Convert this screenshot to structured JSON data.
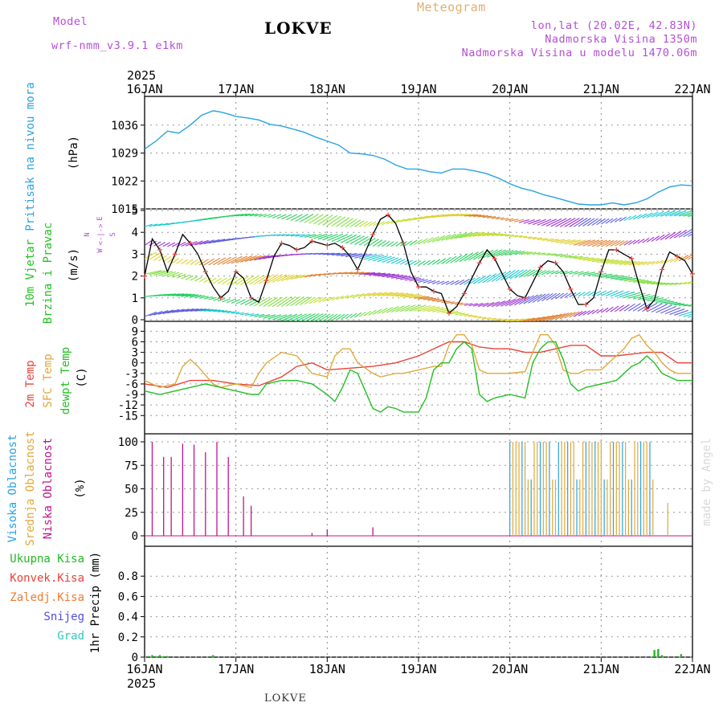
{
  "header": {
    "model_label": "Model",
    "model_name": "wrf-nmm_v3.9.1  e1km",
    "station": "LOKVE",
    "chart_name": "Meteogram",
    "lonlat": "lon,lat (20.02E, 42.83N)",
    "altitude": "Nadmorska Visina 1350m",
    "model_altitude": "Nadmorska Visina u modelu 1470.06m",
    "footer_station": "LOKVE",
    "watermark": "made by Angel"
  },
  "colors": {
    "pressure": "#29a3e0",
    "t2m": "#e8423a",
    "sfc": "#e0a83a",
    "dew": "#22c022",
    "high_cloud": "#29a3e0",
    "mid_cloud": "#e0a83a",
    "low_cloud": "#c0148c",
    "total_precip": "#22b822",
    "purple_text": "#b44fd6",
    "orange_text": "#e0b070"
  },
  "chart_data": {
    "type": "line",
    "time_axis": {
      "year": "2025",
      "ticks": [
        "16JAN",
        "17JAN",
        "18JAN",
        "19JAN",
        "20JAN",
        "21JAN",
        "22JAN"
      ],
      "range_hours": [
        0,
        144
      ]
    },
    "panels": [
      {
        "id": "pressure",
        "labels": [
          "Pritisak na nivou mora"
        ],
        "unit": "(hPa)",
        "ylim": [
          1015,
          1042
        ],
        "yticks": [
          "1015",
          "1022",
          "1029",
          "1036"
        ],
        "series": [
          {
            "x": [
              0,
              3,
              6,
              9,
              12,
              15,
              18,
              20,
              22,
              24,
              27,
              30,
              33,
              36,
              39,
              42,
              45,
              48,
              51,
              54,
              57,
              60,
              63,
              66,
              69,
              72,
              75,
              78,
              81,
              84,
              87,
              90,
              93,
              96,
              99,
              102,
              105,
              108,
              111,
              114,
              117,
              120,
              123,
              126,
              129,
              132,
              135,
              138,
              141,
              144
            ],
            "y": [
              1030,
              1032,
              1034.5,
              1034,
              1036,
              1038.5,
              1039.6,
              1039.3,
              1038.8,
              1038.2,
              1037.8,
              1037.3,
              1036.2,
              1035.8,
              1035,
              1034.2,
              1033,
              1032,
              1031,
              1029,
              1028.8,
              1028.4,
              1027.5,
              1026,
              1025,
              1025,
              1024.3,
              1024,
              1025,
              1025,
              1024.5,
              1023.8,
              1022.7,
              1021.3,
              1020.2,
              1019.5,
              1018.5,
              1017.8,
              1017,
              1016.2,
              1016,
              1016,
              1016.5,
              1016,
              1016.5,
              1017.5,
              1019.2,
              1020.5,
              1021,
              1020.8
            ]
          }
        ]
      },
      {
        "id": "wind",
        "labels": [
          "10m Vjetar",
          "Brzina i Pravac"
        ],
        "unit": "(m/s)",
        "compass": [
          "N",
          "W",
          "E",
          "S"
        ],
        "ylim": [
          0,
          5
        ],
        "yticks": [
          "0",
          "1",
          "2",
          "3",
          "4",
          "5"
        ],
        "series": [
          {
            "name": "speed",
            "x": [
              0,
              2,
              4,
              6,
              8,
              10,
              12,
              14,
              16,
              18,
              20,
              22,
              24,
              26,
              28,
              30,
              32,
              34,
              36,
              38,
              40,
              42,
              44,
              46,
              48,
              50,
              52,
              54,
              56,
              58,
              60,
              62,
              64,
              66,
              68,
              70,
              72,
              74,
              76,
              78,
              80,
              82,
              84,
              86,
              88,
              90,
              92,
              94,
              96,
              98,
              100,
              102,
              104,
              106,
              108,
              110,
              112,
              114,
              116,
              118,
              120,
              122,
              124,
              126,
              128,
              130,
              132,
              134,
              136,
              138,
              140,
              142,
              144
            ],
            "y": [
              2,
              3.7,
              3.2,
              2.2,
              3,
              3.9,
              3.5,
              3,
              2.2,
              1.5,
              1,
              1.3,
              2.2,
              1.9,
              1,
              0.8,
              1.8,
              2.9,
              3.5,
              3.4,
              3.2,
              3.3,
              3.6,
              3.5,
              3.4,
              3.5,
              3.3,
              2.9,
              2.3,
              3.1,
              3.9,
              4.6,
              4.8,
              4.4,
              3.5,
              2.2,
              1.5,
              1.5,
              1.3,
              1.2,
              0.3,
              0.6,
              1.2,
              1.9,
              2.6,
              3.2,
              2.8,
              2.1,
              1.4,
              1.1,
              1,
              1.7,
              2.4,
              2.7,
              2.6,
              2.2,
              1.4,
              0.7,
              0.7,
              1,
              2.2,
              3.2,
              3.2,
              3,
              2.8,
              1.6,
              0.5,
              0.9,
              2.3,
              3.1,
              2.9,
              2.7,
              2.1
            ]
          }
        ]
      },
      {
        "id": "temperature",
        "labels": [
          "2m Temp",
          "SFC Temp",
          "dewpt Temp"
        ],
        "unit": "(C)",
        "ylim": [
          -17,
          10
        ],
        "yticks": [
          "-15",
          "-12",
          "-9",
          "-6",
          "-3",
          "0",
          "3",
          "6",
          "9"
        ],
        "series": [
          {
            "name": "2m Temp",
            "x": [
              0,
              6,
              12,
              18,
              24,
              30,
              36,
              40,
              44,
              48,
              54,
              60,
              66,
              72,
              76,
              80,
              84,
              88,
              92,
              96,
              100,
              104,
              108,
              112,
              116,
              120,
              124,
              128,
              132,
              136,
              140,
              144
            ],
            "y": [
              -6,
              -7,
              -5,
              -5,
              -6,
              -6.5,
              -4,
              -1,
              0,
              -2,
              -1.5,
              -1,
              0,
              2,
              4,
              6,
              6,
              4.5,
              4,
              4,
              3,
              3,
              4,
              5,
              5,
              2,
              2,
              2.5,
              3,
              3,
              0,
              0
            ]
          },
          {
            "name": "SFC Temp",
            "x": [
              0,
              4,
              8,
              10,
              12,
              14,
              18,
              20,
              24,
              28,
              30,
              32,
              36,
              40,
              44,
              48,
              50,
              52,
              54,
              56,
              60,
              62,
              64,
              66,
              68,
              72,
              76,
              78,
              80,
              82,
              84,
              86,
              88,
              90,
              92,
              96,
              100,
              102,
              104,
              106,
              108,
              110,
              112,
              114,
              116,
              120,
              124,
              126,
              128,
              130,
              132,
              134,
              136,
              138,
              140,
              144
            ],
            "y": [
              -5,
              -7,
              -6,
              -1,
              1,
              -1,
              -6,
              -7,
              -6,
              -7,
              -3,
              0,
              3,
              2,
              -3,
              -4,
              2,
              4,
              4,
              0,
              -3,
              -4,
              -3.5,
              -3,
              -3,
              -2,
              -1,
              -1,
              5,
              8,
              8,
              5,
              -2,
              -3,
              -3,
              -3,
              -2.5,
              3,
              8,
              8,
              5,
              -2,
              -3,
              -3,
              -2,
              -2,
              2,
              4,
              7,
              8,
              5,
              3,
              0,
              -2,
              -3,
              -3
            ]
          },
          {
            "name": "dewpt Temp",
            "x": [
              0,
              4,
              8,
              12,
              16,
              20,
              24,
              28,
              30,
              32,
              36,
              40,
              44,
              48,
              50,
              52,
              54,
              56,
              58,
              60,
              62,
              64,
              66,
              68,
              72,
              74,
              76,
              78,
              80,
              82,
              84,
              86,
              88,
              90,
              92,
              96,
              100,
              102,
              104,
              106,
              108,
              110,
              112,
              114,
              116,
              120,
              124,
              126,
              128,
              130,
              132,
              134,
              136,
              138,
              140,
              144
            ],
            "y": [
              -8,
              -9,
              -8,
              -7,
              -6,
              -7,
              -8,
              -9,
              -9,
              -6,
              -5,
              -5,
              -6,
              -9,
              -11,
              -7,
              -2,
              -3,
              -8,
              -13,
              -14,
              -12.5,
              -13,
              -14,
              -14,
              -10,
              -2,
              0,
              0,
              4,
              6,
              4,
              -9,
              -11,
              -10,
              -9,
              -10,
              0,
              4,
              6,
              6,
              1,
              -6,
              -8,
              -7,
              -6,
              -5,
              -3,
              -1,
              0,
              2,
              0,
              -3,
              -4,
              -5,
              -5
            ]
          }
        ]
      },
      {
        "id": "cloud",
        "labels": [
          "Visoka Oblacnost",
          "Srednja Oblacnost",
          "Niska Oblacnost"
        ],
        "unit": "(%)",
        "ylim": [
          0,
          100
        ],
        "yticks": [
          "0",
          "25",
          "50",
          "75",
          "100"
        ],
        "series": [
          {
            "name": "Niska Oblacnost",
            "x": [
              1,
              2,
              4,
              5,
              7,
              8,
              10,
              11,
              13,
              14,
              16,
              17,
              19,
              20,
              22,
              23,
              25,
              26,
              28,
              29,
              31,
              32,
              33,
              34,
              36,
              40,
              44,
              48,
              52,
              56,
              60,
              64,
              68,
              72,
              84,
              96,
              108,
              120,
              132,
              137,
              139,
              143
            ],
            "y": [
              0,
              100,
              0,
              84,
              84,
              0,
              98,
              0,
              97,
              0,
              89,
              0,
              100,
              0,
              84,
              0,
              0,
              42,
              32,
              0,
              0,
              0,
              0,
              0,
              0,
              0,
              3,
              7,
              0,
              0,
              9,
              0,
              0,
              0,
              0,
              0,
              0,
              0,
              0,
              0,
              0,
              0
            ]
          }
        ]
      },
      {
        "id": "precip",
        "labels": [
          "Ukupna Kisa",
          "Konvek.Kisa",
          "Zaledj.Kisa",
          "Snijeg",
          "Grad"
        ],
        "unit": "1hr Precip (mm)",
        "ylim": [
          0,
          1
        ],
        "yticks": [
          "0",
          "0.2",
          "0.4",
          "0.6",
          "0.8"
        ],
        "series": [
          {
            "name": "Ukupna Kisa",
            "x": [
              1,
              2,
              3,
              4,
              5,
              6,
              18,
              134,
              135,
              136,
              141
            ],
            "y": [
              0.01,
              0.02,
              0.01,
              0.02,
              0.01,
              0.01,
              0.02,
              0.07,
              0.08,
              0.02,
              0.03
            ]
          }
        ]
      }
    ]
  }
}
